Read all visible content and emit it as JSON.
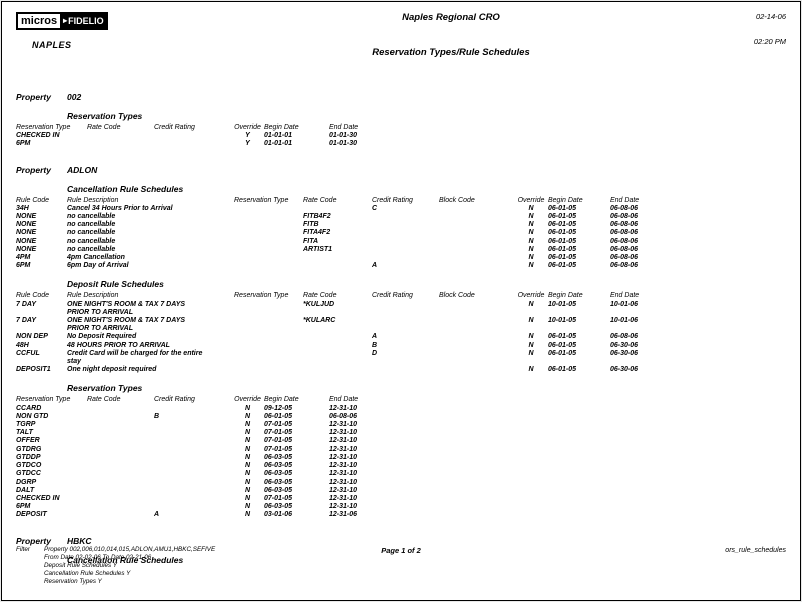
{
  "header": {
    "logo_micros": "micros",
    "logo_fidelio": "FIDELIO",
    "org_name": "NAPLES",
    "report_title": "Naples Regional CRO",
    "report_subtitle": "Reservation Types/Rule Schedules",
    "date": "02-14-06",
    "time": "02:20 PM"
  },
  "sections": [
    {
      "property_label": "Property",
      "property_value": "002",
      "blocks": [
        {
          "heading": "Reservation Types",
          "layout": "resv",
          "columns": [
            "Reservation Type",
            "Rate Code",
            "Credit Rating",
            "Override",
            "Begin Date",
            "End Date"
          ],
          "rows": [
            [
              "CHECKED IN",
              "",
              "",
              "Y",
              "01-01-01",
              "01-01-30"
            ],
            [
              "6PM",
              "",
              "",
              "Y",
              "01-01-01",
              "01-01-30"
            ]
          ]
        }
      ]
    },
    {
      "property_label": "Property",
      "property_value": "ADLON",
      "blocks": [
        {
          "heading": "Cancellation Rule Schedules",
          "layout": "rule",
          "columns": [
            "Rule Code",
            "Rule Description",
            "Reservation Type",
            "Rate Code",
            "Credit Rating",
            "Block Code",
            "Override",
            "Begin Date",
            "End Date"
          ],
          "rows": [
            [
              "34H",
              "Cancel 34 Hours Prior to Arrival",
              "",
              "",
              "C",
              "",
              "N",
              "06-01-05",
              "06-08-06"
            ],
            [
              "NONE",
              "no cancellable",
              "",
              "FITB4F2",
              "",
              "",
              "N",
              "06-01-05",
              "06-08-06"
            ],
            [
              "NONE",
              "no cancellable",
              "",
              "FITB",
              "",
              "",
              "N",
              "06-01-05",
              "06-08-06"
            ],
            [
              "NONE",
              "no cancellable",
              "",
              "FITA4F2",
              "",
              "",
              "N",
              "06-01-05",
              "06-08-06"
            ],
            [
              "NONE",
              "no cancellable",
              "",
              "FITA",
              "",
              "",
              "N",
              "06-01-05",
              "06-08-06"
            ],
            [
              "NONE",
              "no cancellable",
              "",
              "ARTIST1",
              "",
              "",
              "N",
              "06-01-05",
              "06-08-06"
            ],
            [
              "4PM",
              "4pm Cancellation",
              "",
              "",
              "",
              "",
              "N",
              "06-01-05",
              "06-08-06"
            ],
            [
              "6PM",
              "6pm Day of Arrival",
              "",
              "",
              "A",
              "",
              "N",
              "06-01-05",
              "06-08-06"
            ]
          ]
        },
        {
          "heading": "Deposit Rule Schedules",
          "layout": "rule",
          "columns": [
            "Rule Code",
            "Rule Description",
            "Reservation Type",
            "Rate Code",
            "Credit Rating",
            "Block Code",
            "Override",
            "Begin Date",
            "End Date"
          ],
          "rows": [
            [
              "7 DAY",
              "ONE NIGHT'S ROOM & TAX 7 DAYS PRIOR TO ARRIVAL",
              "",
              "*KULJUD",
              "",
              "",
              "N",
              "10-01-05",
              "10-01-06"
            ],
            [
              "7 DAY",
              "ONE NIGHT'S ROOM & TAX 7 DAYS PRIOR TO ARRIVAL",
              "",
              "*KULARC",
              "",
              "",
              "N",
              "10-01-05",
              "10-01-06"
            ],
            [
              "NON DEP",
              "No Deposit Required",
              "",
              "",
              "A",
              "",
              "N",
              "06-01-05",
              "06-08-06"
            ],
            [
              "48H",
              "48 HOURS PRIOR TO ARRIVAL",
              "",
              "",
              "B",
              "",
              "N",
              "06-01-05",
              "06-30-06"
            ],
            [
              "CCFUL",
              "Credit Card will be charged for the entire stay",
              "",
              "",
              "D",
              "",
              "N",
              "06-01-05",
              "06-30-06"
            ],
            [
              "DEPOSIT1",
              "One night deposit required",
              "",
              "",
              "",
              "",
              "N",
              "06-01-05",
              "06-30-06"
            ]
          ]
        },
        {
          "heading": "Reservation Types",
          "layout": "resv",
          "columns": [
            "Reservation Type",
            "Rate Code",
            "Credit Rating",
            "Override",
            "Begin Date",
            "End Date"
          ],
          "rows": [
            [
              "CCARD",
              "",
              "",
              "N",
              "09-12-05",
              "12-31-10"
            ],
            [
              "NON GTD",
              "",
              "B",
              "N",
              "06-01-05",
              "06-08-06"
            ],
            [
              "TGRP",
              "",
              "",
              "N",
              "07-01-05",
              "12-31-10"
            ],
            [
              "TALT",
              "",
              "",
              "N",
              "07-01-05",
              "12-31-10"
            ],
            [
              "OFFER",
              "",
              "",
              "N",
              "07-01-05",
              "12-31-10"
            ],
            [
              "GTDRG",
              "",
              "",
              "N",
              "07-01-05",
              "12-31-10"
            ],
            [
              "GTDDP",
              "",
              "",
              "N",
              "06-03-05",
              "12-31-10"
            ],
            [
              "GTDCO",
              "",
              "",
              "N",
              "06-03-05",
              "12-31-10"
            ],
            [
              "GTDCC",
              "",
              "",
              "N",
              "06-03-05",
              "12-31-10"
            ],
            [
              "DGRP",
              "",
              "",
              "N",
              "06-03-05",
              "12-31-10"
            ],
            [
              "DALT",
              "",
              "",
              "N",
              "06-03-05",
              "12-31-10"
            ],
            [
              "CHECKED IN",
              "",
              "",
              "N",
              "07-01-05",
              "12-31-10"
            ],
            [
              "6PM",
              "",
              "",
              "N",
              "06-03-05",
              "12-31-10"
            ],
            [
              "DEPOSIT",
              "",
              "A",
              "N",
              "03-01-06",
              "12-31-06"
            ]
          ]
        }
      ]
    },
    {
      "property_label": "Property",
      "property_value": "HBKC",
      "blocks": [
        {
          "heading": "Cancellation Rule Schedules",
          "layout": "rule",
          "columns": [],
          "rows": []
        }
      ]
    }
  ],
  "footer": {
    "filter_label": "Filter",
    "filter_lines": [
      "Property 002,006,010,014,015,ADLON,AMU1,HBKC,SEFIVE",
      "From Date 02-02-06  To Date  02-21-06",
      "Deposit Rule Schedules Y",
      "Cancellation Rule Schedules Y",
      "Reservation Types Y"
    ],
    "page_label": "Page 1 of 2",
    "report_id": "ors_rule_schedules"
  }
}
